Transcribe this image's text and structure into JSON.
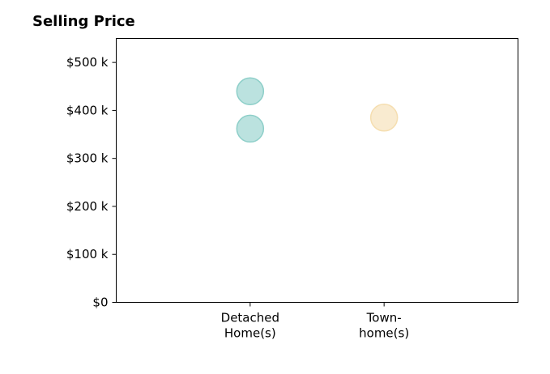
{
  "chart_data": {
    "type": "scatter",
    "title": "Selling Price",
    "xlabel": "",
    "ylabel": "",
    "ylim": [
      0,
      550000
    ],
    "y_ticks": [
      {
        "value": 0,
        "label": "$0"
      },
      {
        "value": 100000,
        "label": "$100 k"
      },
      {
        "value": 200000,
        "label": "$200 k"
      },
      {
        "value": 300000,
        "label": "$300 k"
      },
      {
        "value": 400000,
        "label": "$400 k"
      },
      {
        "value": 500000,
        "label": "$500 k"
      }
    ],
    "categories": [
      {
        "key": "detached",
        "label_lines": [
          "Detached",
          "Home(s)"
        ]
      },
      {
        "key": "town",
        "label_lines": [
          "Town-",
          "home(s)"
        ]
      }
    ],
    "x_slots": 3,
    "series": [
      {
        "category": "detached",
        "color": "#8ecfc9",
        "values": [
          440000,
          362000
        ]
      },
      {
        "category": "town",
        "color": "#f5deb0",
        "values": [
          385000
        ]
      }
    ],
    "grid": false,
    "legend": "none"
  }
}
